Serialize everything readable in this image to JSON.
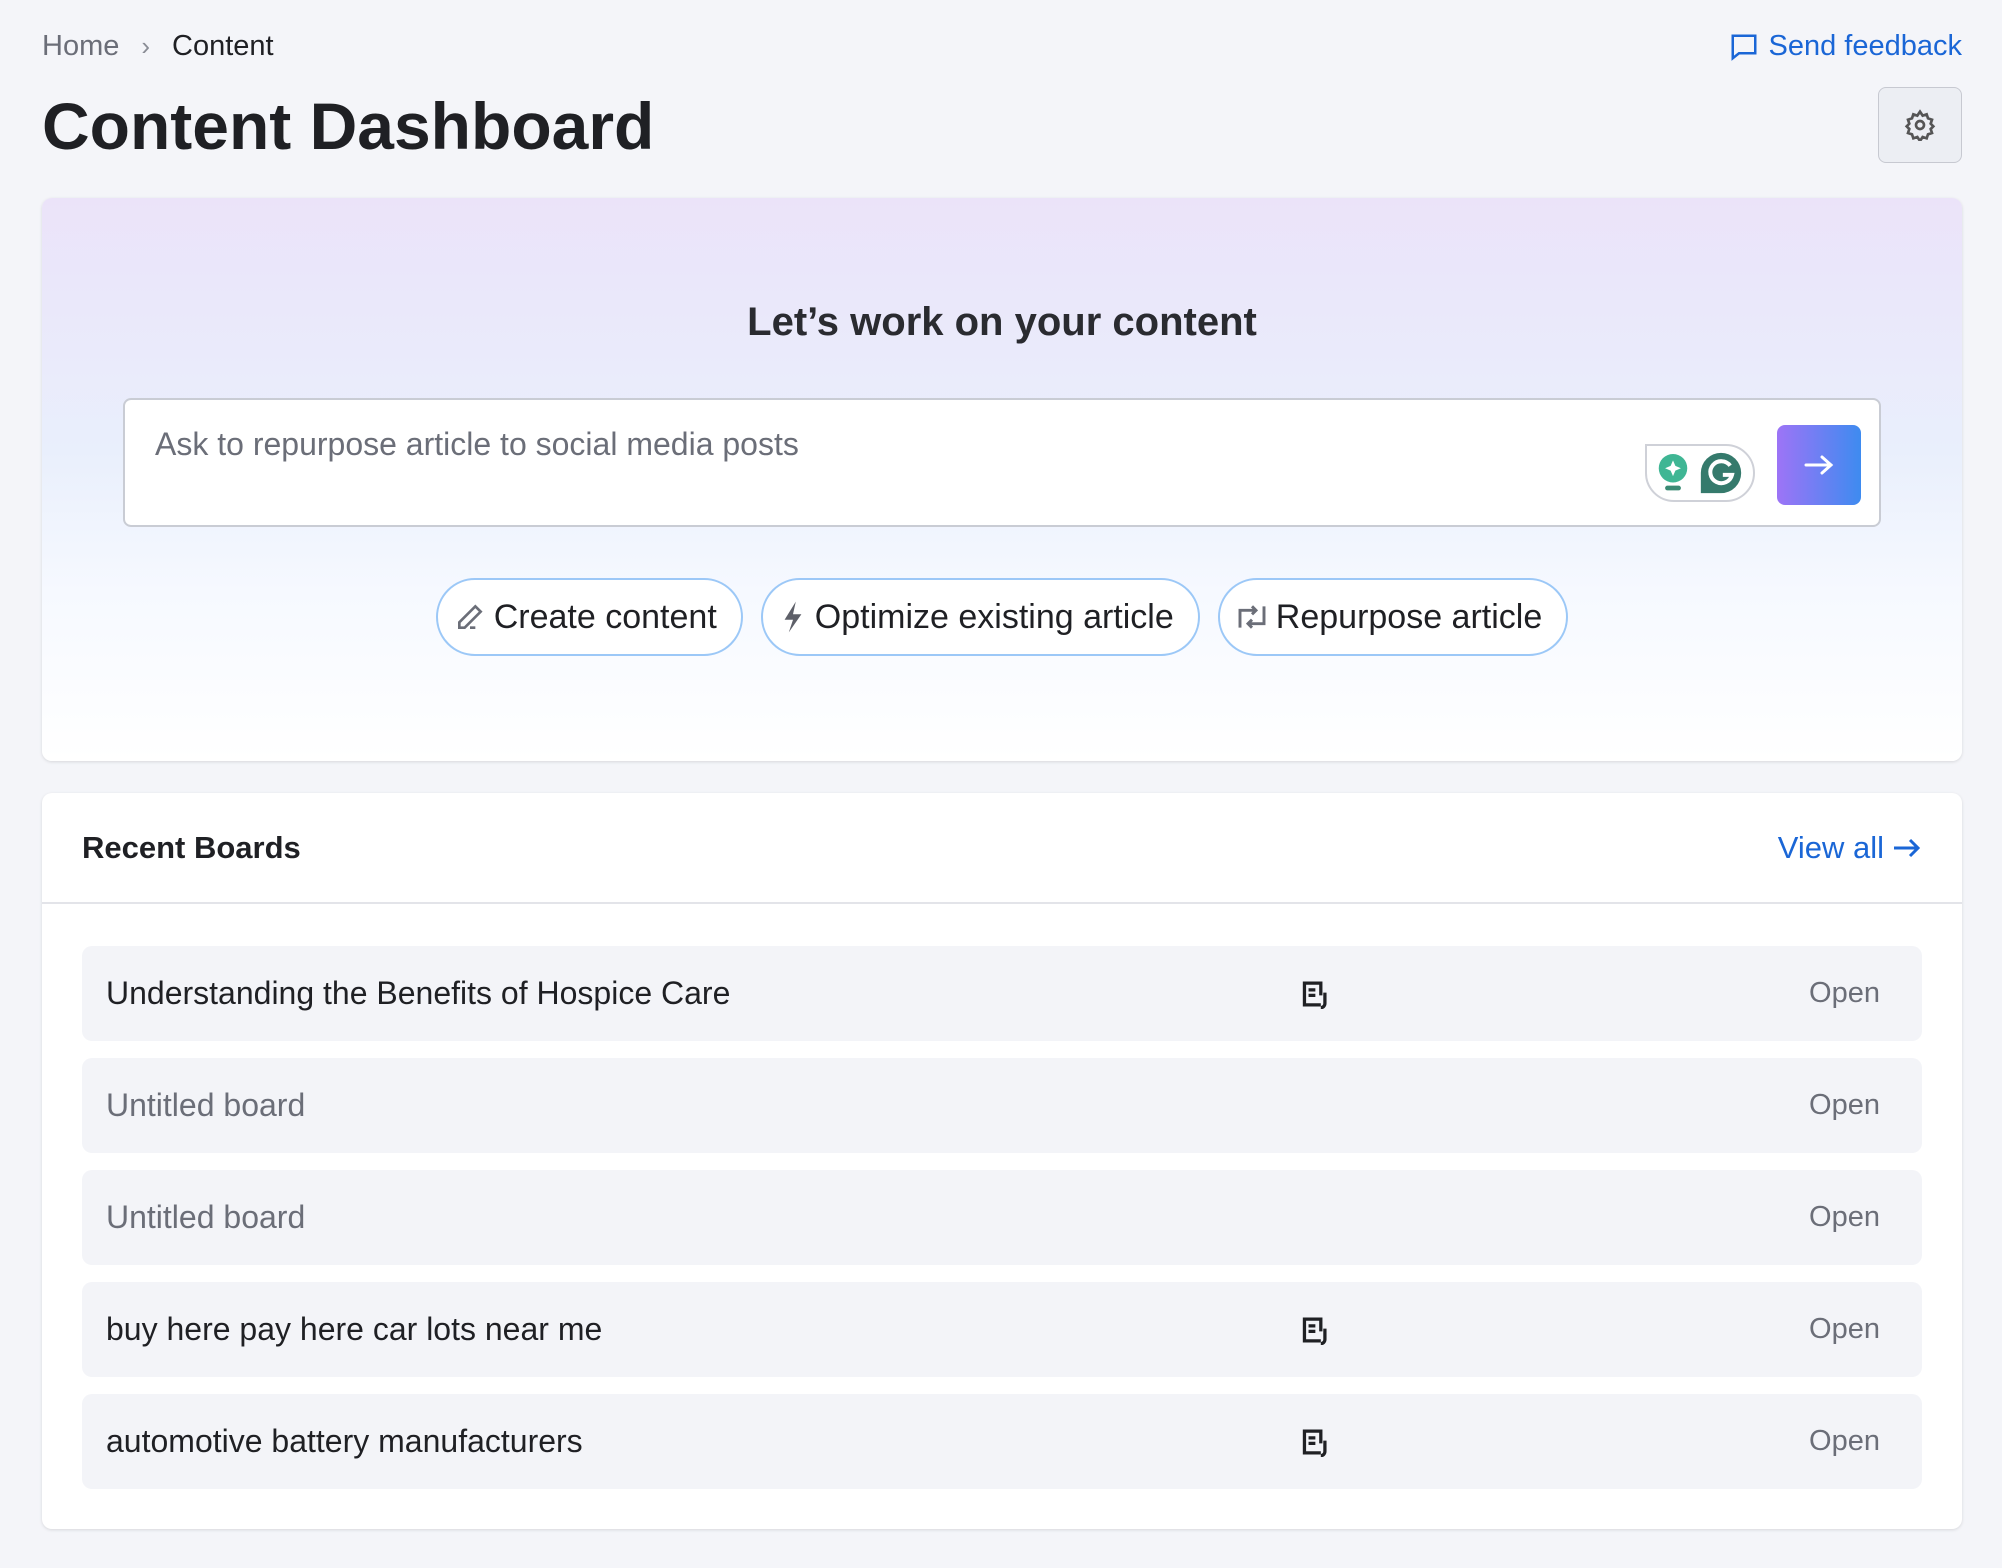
{
  "breadcrumb": {
    "items": [
      "Home",
      "Content"
    ]
  },
  "header": {
    "title": "Content Dashboard",
    "feedback_label": "Send feedback"
  },
  "hero": {
    "heading": "Let’s work on your content",
    "input_placeholder": "Ask to repurpose article to social media posts",
    "chips": [
      {
        "label": "Create content",
        "icon": "pencil-icon"
      },
      {
        "label": "Optimize existing article",
        "icon": "lightning-icon"
      },
      {
        "label": "Repurpose article",
        "icon": "repeat-icon"
      }
    ]
  },
  "boards": {
    "title": "Recent Boards",
    "view_all": "View all",
    "rows": [
      {
        "name": "Understanding the Benefits of Hospice Care",
        "has_doc": true,
        "action": "Open"
      },
      {
        "name": "Untitled board",
        "has_doc": false,
        "action": "Open"
      },
      {
        "name": "Untitled board",
        "has_doc": false,
        "action": "Open"
      },
      {
        "name": "buy here pay here car lots near me",
        "has_doc": true,
        "action": "Open"
      },
      {
        "name": "automotive battery manufacturers",
        "has_doc": true,
        "action": "Open"
      }
    ]
  },
  "colors": {
    "accent": "#1a66d6",
    "gradient_start": "#9d74f6",
    "gradient_end": "#3e8bf0",
    "chip_border": "#9cc8f7"
  }
}
